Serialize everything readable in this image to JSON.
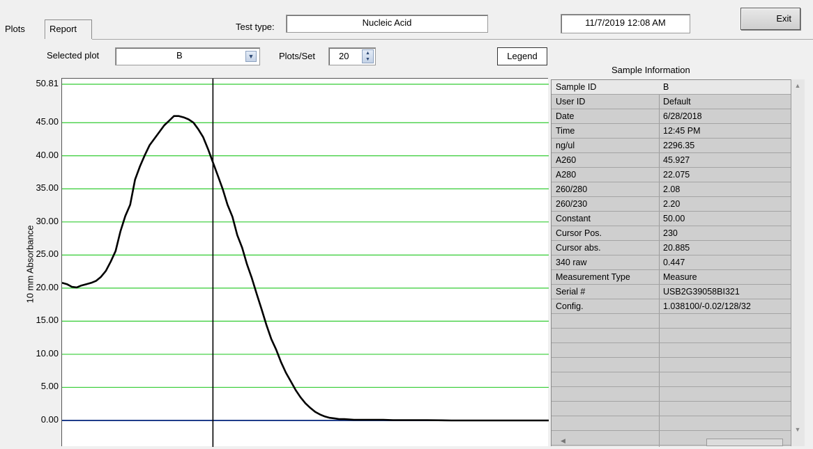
{
  "tabs": [
    {
      "label": "Plots"
    },
    {
      "label": "Report"
    }
  ],
  "header": {
    "test_type_label": "Test type:",
    "test_type_value": "Nucleic Acid",
    "datetime": "11/7/2019 12:08 AM",
    "exit_label": "Exit"
  },
  "controls": {
    "selected_plot_label": "Selected plot",
    "selected_plot_value": "B",
    "plots_per_set_label": "Plots/Set",
    "plots_per_set_value": "20",
    "legend_label": "Legend"
  },
  "sample_info": {
    "title": "Sample Information",
    "rows": [
      {
        "label": "Sample ID",
        "value": "B"
      },
      {
        "label": "User ID",
        "value": "Default"
      },
      {
        "label": "Date",
        "value": "6/28/2018"
      },
      {
        "label": "Time",
        "value": "12:45 PM"
      },
      {
        "label": "ng/ul",
        "value": "2296.35"
      },
      {
        "label": "A260",
        "value": "45.927"
      },
      {
        "label": "A280",
        "value": "22.075"
      },
      {
        "label": "260/280",
        "value": "2.08"
      },
      {
        "label": "260/230",
        "value": "2.20"
      },
      {
        "label": "Constant",
        "value": "50.00"
      },
      {
        "label": "Cursor Pos.",
        "value": "230"
      },
      {
        "label": "Cursor abs.",
        "value": "20.885"
      },
      {
        "label": "340 raw",
        "value": "0.447"
      },
      {
        "label": "Measurement Type",
        "value": "Measure"
      },
      {
        "label": "Serial #",
        "value": "USB2G39058BI321"
      },
      {
        "label": "Config.",
        "value": "1.038100/-0.02/128/32"
      }
    ],
    "empty_rows": 9
  },
  "chart_data": {
    "type": "line",
    "ylabel": "10 mm Absorbance",
    "ylim": [
      -4,
      50.81
    ],
    "yticks": [
      "50.81",
      "45.00",
      "40.00",
      "35.00",
      "30.00",
      "25.00",
      "20.00",
      "15.00",
      "10.00",
      "5.00",
      "0.00"
    ],
    "ytick_values": [
      50.81,
      45,
      40,
      35,
      30,
      25,
      20,
      15,
      10,
      5,
      0
    ],
    "xlim": [
      0,
      100
    ],
    "cursor_x": 31,
    "colors": {
      "grid": "#33cc33",
      "curve": "#000000",
      "baseline": "#1f3d8a",
      "cursor": "#000000"
    },
    "series": [
      {
        "x": [
          0,
          1,
          2,
          3,
          4,
          5,
          6,
          7,
          8,
          9,
          10,
          11,
          12,
          13,
          14,
          15,
          16,
          17,
          18,
          19,
          20,
          21,
          22,
          23,
          24,
          25,
          26,
          27,
          28,
          29,
          30,
          31,
          32,
          33,
          34,
          35,
          36,
          37,
          38,
          39,
          40,
          41,
          42,
          43,
          44,
          45,
          46,
          47,
          48,
          49,
          50,
          51,
          52,
          53,
          54,
          55,
          56,
          57,
          58,
          59,
          60,
          62,
          64,
          66,
          68,
          70,
          75,
          80,
          85,
          90,
          95,
          100
        ],
        "values": [
          20.8,
          20.6,
          20.2,
          20.1,
          20.4,
          20.6,
          20.8,
          21.1,
          21.7,
          22.6,
          24.0,
          25.6,
          28.6,
          30.9,
          32.6,
          36.4,
          38.4,
          40.1,
          41.6,
          42.6,
          43.6,
          44.6,
          45.3,
          46.0,
          46.0,
          45.8,
          45.5,
          45.0,
          44.0,
          42.8,
          41.0,
          39.0,
          37.0,
          35.0,
          32.6,
          30.8,
          28.0,
          26.1,
          23.6,
          21.5,
          19.1,
          16.8,
          14.4,
          12.3,
          10.7,
          8.8,
          7.2,
          5.9,
          4.6,
          3.5,
          2.6,
          1.9,
          1.3,
          0.9,
          0.6,
          0.4,
          0.3,
          0.2,
          0.2,
          0.15,
          0.1,
          0.1,
          0.1,
          0.1,
          0.05,
          0.05,
          0.05,
          0.0,
          0.0,
          0.0,
          0.0,
          0.0
        ]
      }
    ]
  }
}
